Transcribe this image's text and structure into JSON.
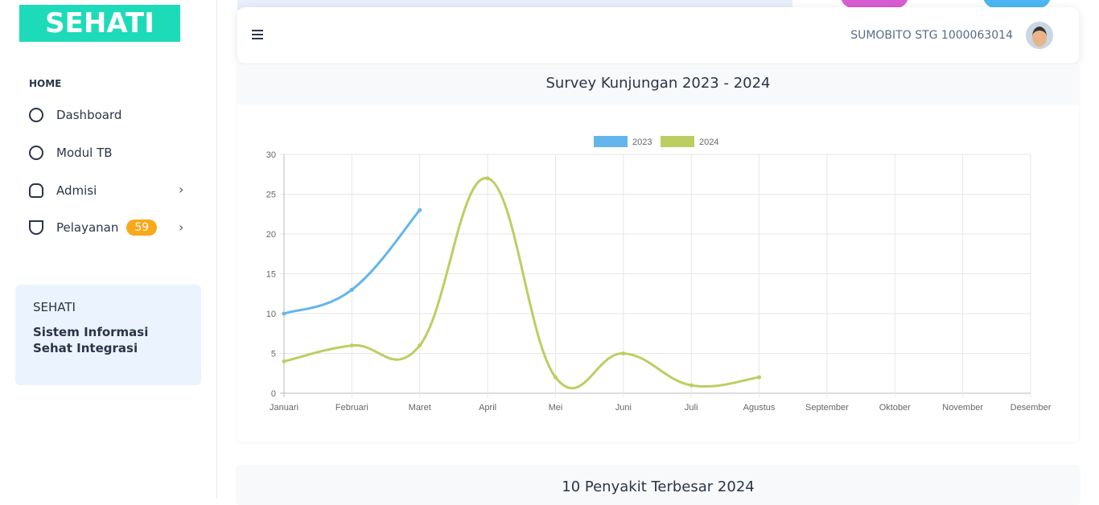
{
  "sidebar": {
    "logo": "SEHATI",
    "section": "HOME",
    "menu": [
      {
        "label": "Dashboard"
      },
      {
        "label": "Modul TB"
      },
      {
        "label": "Admisi"
      },
      {
        "label": "Pelayanan",
        "badge": "59"
      }
    ],
    "info": {
      "title": "SEHATI",
      "lines": [
        "Sistem Informasi",
        "Sehat Integrasi"
      ]
    }
  },
  "header": {
    "user": "SUMOBITO STG 1000063014"
  },
  "chart_card": {
    "title": "Survey Kunjungan 2023 - 2024"
  },
  "chart_data": {
    "type": "line",
    "categories": [
      "Januari",
      "Februari",
      "Maret",
      "April",
      "Mei",
      "Juni",
      "Juli",
      "Agustus",
      "September",
      "Oktober",
      "November",
      "Desember"
    ],
    "series": [
      {
        "name": "2023",
        "color": "#64b5ec",
        "values": [
          10,
          13,
          23,
          null,
          null,
          null,
          null,
          null,
          null,
          null,
          null,
          null
        ]
      },
      {
        "name": "2024",
        "color": "#bcce62",
        "values": [
          4,
          6,
          6,
          27,
          2,
          5,
          1,
          2,
          null,
          null,
          null,
          null
        ]
      }
    ],
    "ylim": [
      0,
      30
    ],
    "yticks": [
      0,
      5,
      10,
      15,
      20,
      25,
      30
    ],
    "grid": true,
    "legend": "top"
  },
  "second_card": {
    "title": "10 Penyakit Terbesar 2024"
  }
}
